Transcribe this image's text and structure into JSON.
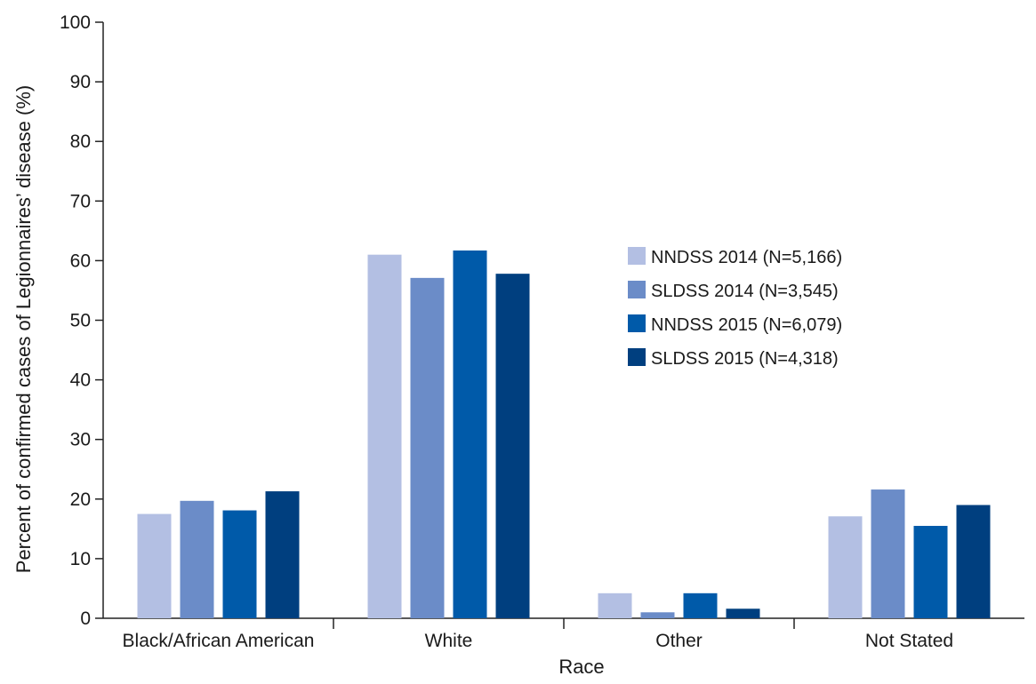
{
  "chart_data": {
    "type": "bar",
    "title": "",
    "xlabel": "Race",
    "ylabel": "Percent of confirmed cases of Legionnaires’ disease  (%)",
    "ylim": [
      0,
      100
    ],
    "yticks": [
      0,
      10,
      20,
      30,
      40,
      50,
      60,
      70,
      80,
      90,
      100
    ],
    "grid": false,
    "legend_position": "right",
    "categories": [
      "Black/African American",
      "White",
      "Other",
      "Not Stated"
    ],
    "series": [
      {
        "name": "NNDSS 2014 (N=5,166)",
        "color": "#b3bfe3",
        "values": [
          17.5,
          61.0,
          4.2,
          17.1
        ]
      },
      {
        "name": "SLDSS 2014 (N=3,545)",
        "color": "#6b8cc8",
        "values": [
          19.7,
          57.1,
          1.0,
          21.6
        ]
      },
      {
        "name": "NNDSS 2015 (N=6,079)",
        "color": "#005aa9",
        "values": [
          18.1,
          61.7,
          4.2,
          15.5
        ]
      },
      {
        "name": "SLDSS 2015 (N=4,318)",
        "color": "#003f7f",
        "values": [
          21.3,
          57.8,
          1.6,
          19.0
        ]
      }
    ]
  }
}
